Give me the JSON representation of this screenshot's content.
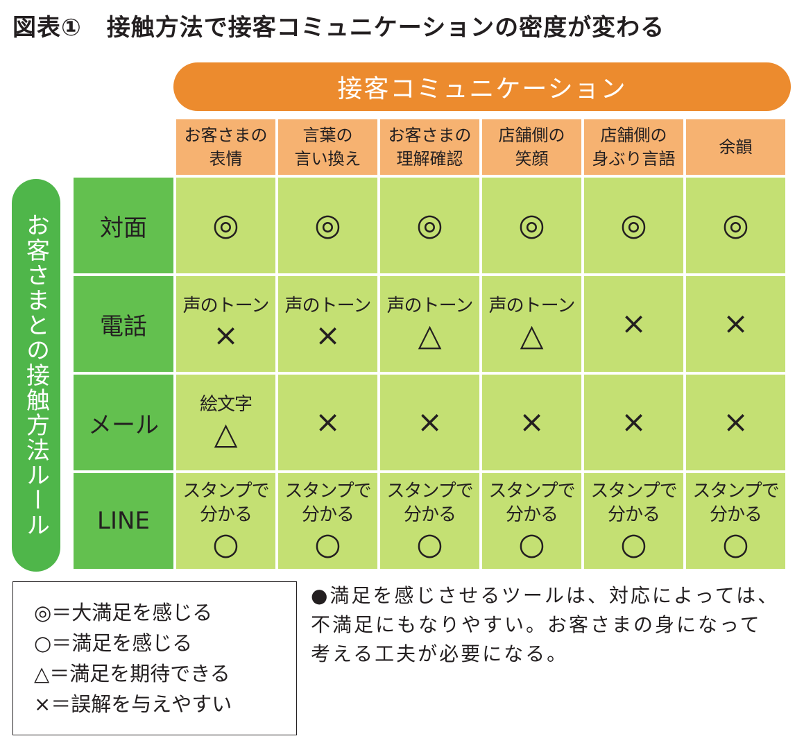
{
  "title": {
    "number": "図表①",
    "text": "接触方法で接客コミュニケーションの密度が変わる"
  },
  "header_bar": "接客コミュニケーション",
  "side_bar": "お客さまとの接触方法ルール",
  "columns": [
    [
      "お客さまの",
      "表情"
    ],
    [
      "言葉の",
      "言い換え"
    ],
    [
      "お客さまの",
      "理解確認"
    ],
    [
      "店舗側の",
      "笑顔"
    ],
    [
      "店舗側の",
      "身ぶり言語"
    ],
    [
      "余韻",
      ""
    ]
  ],
  "rows": [
    {
      "label": "対面",
      "cells": [
        {
          "note1": "",
          "note2": "",
          "mark": "◎"
        },
        {
          "note1": "",
          "note2": "",
          "mark": "◎"
        },
        {
          "note1": "",
          "note2": "",
          "mark": "◎"
        },
        {
          "note1": "",
          "note2": "",
          "mark": "◎"
        },
        {
          "note1": "",
          "note2": "",
          "mark": "◎"
        },
        {
          "note1": "",
          "note2": "",
          "mark": "◎"
        }
      ]
    },
    {
      "label": "電話",
      "cells": [
        {
          "note1": "声のトーン",
          "note2": "",
          "mark": "×"
        },
        {
          "note1": "声のトーン",
          "note2": "",
          "mark": "×"
        },
        {
          "note1": "声のトーン",
          "note2": "",
          "mark": "△"
        },
        {
          "note1": "声のトーン",
          "note2": "",
          "mark": "△"
        },
        {
          "note1": "",
          "note2": "",
          "mark": "×"
        },
        {
          "note1": "",
          "note2": "",
          "mark": "×"
        }
      ]
    },
    {
      "label": "メール",
      "cells": [
        {
          "note1": "絵文字",
          "note2": "",
          "mark": "△"
        },
        {
          "note1": "",
          "note2": "",
          "mark": "×"
        },
        {
          "note1": "",
          "note2": "",
          "mark": "×"
        },
        {
          "note1": "",
          "note2": "",
          "mark": "×"
        },
        {
          "note1": "",
          "note2": "",
          "mark": "×"
        },
        {
          "note1": "",
          "note2": "",
          "mark": "×"
        }
      ]
    },
    {
      "label": "LINE",
      "cells": [
        {
          "note1": "スタンプで",
          "note2": "分かる",
          "mark": "○"
        },
        {
          "note1": "スタンプで",
          "note2": "分かる",
          "mark": "○"
        },
        {
          "note1": "スタンプで",
          "note2": "分かる",
          "mark": "○"
        },
        {
          "note1": "スタンプで",
          "note2": "分かる",
          "mark": "○"
        },
        {
          "note1": "スタンプで",
          "note2": "分かる",
          "mark": "○"
        },
        {
          "note1": "スタンプで",
          "note2": "分かる",
          "mark": "○"
        }
      ]
    }
  ],
  "legend": [
    "◎＝大満足を感じる",
    "○＝満足を感じる",
    "△＝満足を期待できる",
    "×＝誤解を与えやすい"
  ],
  "note": [
    "●満足を感じさせるツールは、対応によっては、",
    "不満足にもなりやすい。お客さまの身になって",
    "考える工夫が必要になる。"
  ],
  "colors": {
    "orange": "#ec8b2e",
    "header_cell": "#f6b271",
    "green_bar": "#4fb64a",
    "row_head": "#63c04f",
    "cell": "#c4e073"
  }
}
